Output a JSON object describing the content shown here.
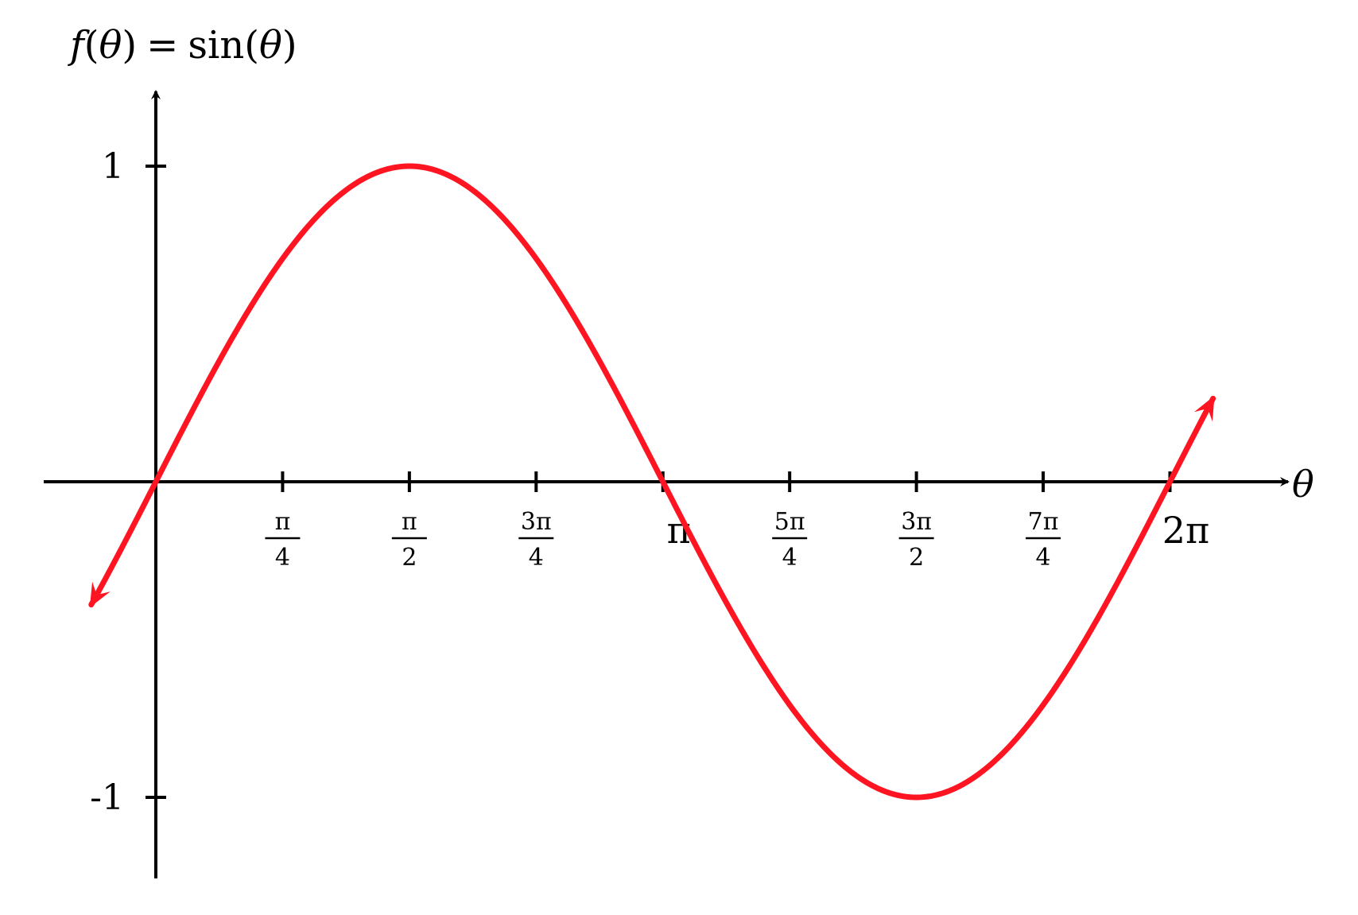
{
  "chart_data": {
    "type": "line",
    "function": "sin",
    "title": {
      "lhs_func": "f",
      "open_paren": "(",
      "lhs_var": "θ",
      "close_paren": ")",
      "equals": "=",
      "rhs_func": "sin",
      "rhs_open": "(",
      "rhs_var": "θ",
      "rhs_close": ")"
    },
    "xlabel": "θ",
    "ylabel": "",
    "xlim": [
      -0.6,
      6.8
    ],
    "ylim": [
      -1.25,
      1.25
    ],
    "curve_domain": [
      -0.4,
      6.55
    ],
    "curve_color": "#ff1421",
    "axis_color": "#000000",
    "grid": false,
    "x_ticks": [
      {
        "value": 0.7854,
        "label_type": "fraction",
        "num": "π",
        "den": "4"
      },
      {
        "value": 1.5708,
        "label_type": "fraction",
        "num": "π",
        "den": "2"
      },
      {
        "value": 2.3562,
        "label_type": "fraction",
        "num": "3π",
        "den": "4"
      },
      {
        "value": 3.1416,
        "label_type": "plain",
        "text": "π"
      },
      {
        "value": 3.927,
        "label_type": "fraction",
        "num": "5π",
        "den": "4"
      },
      {
        "value": 4.7124,
        "label_type": "fraction",
        "num": "3π",
        "den": "2"
      },
      {
        "value": 5.4978,
        "label_type": "fraction",
        "num": "7π",
        "den": "4"
      },
      {
        "value": 6.2832,
        "label_type": "plain",
        "text": "2π"
      }
    ],
    "y_ticks": [
      {
        "value": 1,
        "label": "1"
      },
      {
        "value": -1,
        "label": "-1"
      }
    ],
    "series": [
      {
        "x": [
          0,
          0.7854,
          1.5708,
          2.3562,
          3.1416,
          3.927,
          4.7124,
          5.4978,
          6.2832
        ],
        "y": [
          0,
          0.7071,
          1,
          0.7071,
          0,
          -0.7071,
          -1,
          -0.7071,
          0
        ]
      }
    ]
  }
}
